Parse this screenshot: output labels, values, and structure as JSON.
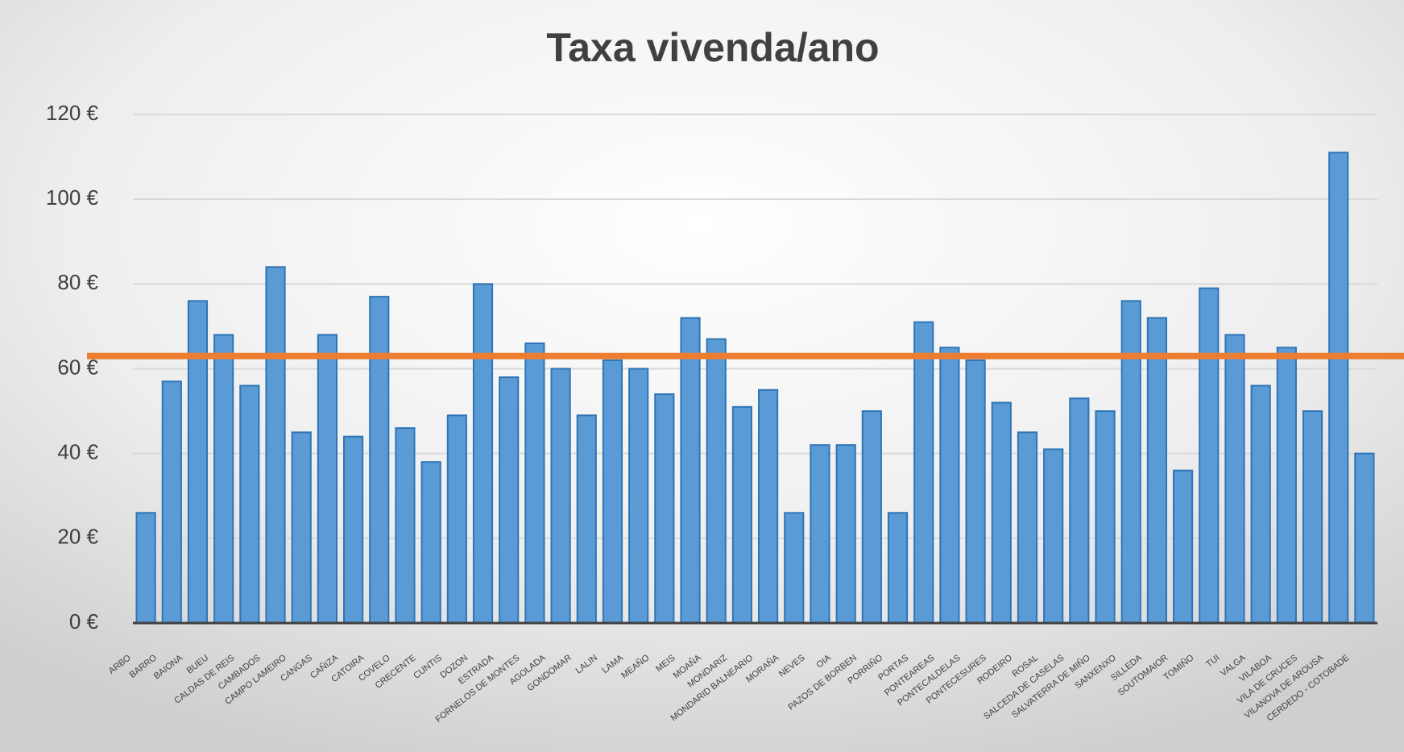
{
  "chart_data": {
    "type": "bar",
    "title": "Taxa vivenda/ano",
    "categories": [
      "ARBO",
      "BARRO",
      "BAIONA",
      "BUEU",
      "CALDAS DE REIS",
      "CAMBADOS",
      "CAMPO LAMEIRO",
      "CANGAS",
      "CAÑIZA",
      "CATOIRA",
      "COVELO",
      "CRECENTE",
      "CUNTIS",
      "DOZON",
      "ESTRADA",
      "FORNELOS DE MONTES",
      "AGOLADA",
      "GONDOMAR",
      "LALIN",
      "LAMA",
      "MEAÑO",
      "MEIS",
      "MOAÑA",
      "MONDARIZ",
      "MONDARID BALNEARIO",
      "MORAÑA",
      "NEVES",
      "OIA",
      "PAZOS DE BORBEN",
      "PORRIÑO",
      "PORTAS",
      "PONTEAREAS",
      "PONTECALDELAS",
      "PONTECESURES",
      "RODEIRO",
      "ROSAL",
      "SALCEDA DE CASELAS",
      "SALVATERRA DE MIÑO",
      "SANXENXO",
      "SILLEDA",
      "SOUTOMAIOR",
      "TOMIÑO",
      "TUI",
      "VALGA",
      "VILABOA",
      "VILA DE CRUCES",
      "VILANOVA DE AROUSA",
      "CERDEDO - COTOBADE"
    ],
    "values": [
      26,
      57,
      76,
      68,
      56,
      84,
      45,
      68,
      44,
      77,
      46,
      38,
      49,
      80,
      58,
      66,
      60,
      49,
      62,
      60,
      54,
      72,
      67,
      51,
      55,
      26,
      42,
      42,
      50,
      26,
      71,
      65,
      62,
      52,
      45,
      41,
      53,
      50,
      76,
      72,
      36,
      79,
      68,
      56,
      65,
      50,
      111,
      40
    ],
    "color": "#5b9bd5",
    "reference_value": 63,
    "reference_color": "#ed7d31",
    "ylim": [
      0,
      120
    ],
    "yticks": [
      {
        "value": 0,
        "label": "0 €"
      },
      {
        "value": 20,
        "label": "20 €"
      },
      {
        "value": 40,
        "label": "40 €"
      },
      {
        "value": 60,
        "label": "60 €"
      },
      {
        "value": 80,
        "label": "80 €"
      },
      {
        "value": 100,
        "label": "100 €"
      },
      {
        "value": 120,
        "label": "120 €"
      }
    ],
    "grid": true
  }
}
